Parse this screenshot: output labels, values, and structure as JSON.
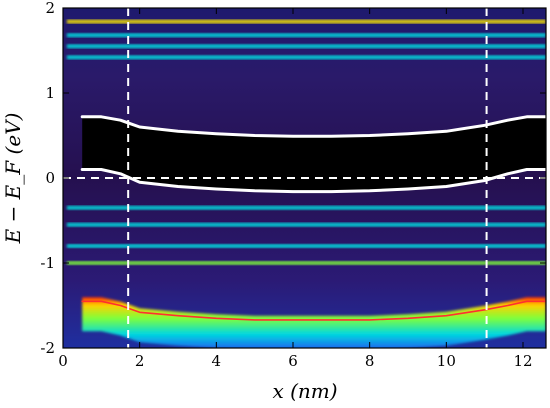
{
  "chart_data": {
    "type": "heatmap",
    "title": "",
    "xlabel": "x (nm)",
    "ylabel": "E − E_F (eV)",
    "xlim": [
      0,
      12.6
    ],
    "ylim": [
      -2,
      2
    ],
    "x_ticks": [
      0,
      2,
      4,
      6,
      8,
      10,
      12
    ],
    "y_ticks": [
      -2,
      -1,
      0,
      1,
      2
    ],
    "colormap": [
      "#000000",
      "#2a0a4a",
      "#3a1d8a",
      "#1f3fd6",
      "#1e90ff",
      "#00e5e5",
      "#7fff3a",
      "#ffea00",
      "#ff6a00",
      "#ff1a1a"
    ],
    "bands": [
      {
        "energy": 1.84,
        "x": [
          0.1,
          12.6
        ],
        "intensity": 0.6
      },
      {
        "energy": 1.68,
        "x": [
          0.1,
          12.6
        ],
        "intensity": 0.35
      },
      {
        "energy": 1.55,
        "x": [
          0.1,
          12.6
        ],
        "intensity": 0.3
      },
      {
        "energy": 1.42,
        "x": [
          0.1,
          12.6
        ],
        "intensity": 0.3
      },
      {
        "energy": -0.35,
        "x": [
          0.1,
          12.6
        ],
        "intensity": 0.4
      },
      {
        "energy": -0.55,
        "x": [
          0.1,
          12.6
        ],
        "intensity": 0.3
      },
      {
        "energy": -0.8,
        "x": [
          0.1,
          12.6
        ],
        "intensity": 0.3
      },
      {
        "energy": -1.0,
        "x": [
          0.1,
          12.6
        ],
        "intensity": 0.45
      }
    ],
    "series": [
      {
        "name": "",
        "color": "#ffffff",
        "x": [
          0.5,
          1.0,
          1.5,
          2.0,
          3.0,
          4.0,
          5.0,
          6.0,
          7.0,
          8.0,
          9.0,
          10.0,
          11.0,
          11.6,
          12.1,
          12.6
        ],
        "y": [
          0.72,
          0.72,
          0.68,
          0.6,
          0.55,
          0.52,
          0.5,
          0.49,
          0.49,
          0.5,
          0.52,
          0.55,
          0.62,
          0.68,
          0.72,
          0.72
        ]
      },
      {
        "name": "",
        "color": "#ffffff",
        "x": [
          0.5,
          1.0,
          1.5,
          2.0,
          3.0,
          4.0,
          5.0,
          6.0,
          7.0,
          8.0,
          9.0,
          10.0,
          11.0,
          11.6,
          12.1,
          12.6
        ],
        "y": [
          0.1,
          0.1,
          0.05,
          -0.05,
          -0.1,
          -0.13,
          -0.15,
          -0.16,
          -0.16,
          -0.15,
          -0.13,
          -0.1,
          -0.03,
          0.05,
          0.1,
          0.1
        ]
      },
      {
        "name": "",
        "color": "#ff3030",
        "x": [
          0.5,
          1.0,
          1.5,
          2.0,
          3.0,
          4.0,
          5.0,
          6.0,
          7.0,
          8.0,
          9.0,
          10.0,
          11.0,
          11.6,
          12.1,
          12.6
        ],
        "y": [
          -1.45,
          -1.45,
          -1.5,
          -1.58,
          -1.62,
          -1.65,
          -1.67,
          -1.67,
          -1.67,
          -1.67,
          -1.65,
          -1.62,
          -1.55,
          -1.5,
          -1.45,
          -1.45
        ]
      }
    ],
    "reference_lines": [
      {
        "orientation": "vertical",
        "value": 1.7,
        "style": "dashed",
        "color": "#ffffff"
      },
      {
        "orientation": "vertical",
        "value": 11.05,
        "style": "dashed",
        "color": "#ffffff"
      },
      {
        "orientation": "horizontal",
        "value": 0,
        "style": "dashed",
        "color": "#ffffff"
      }
    ]
  }
}
